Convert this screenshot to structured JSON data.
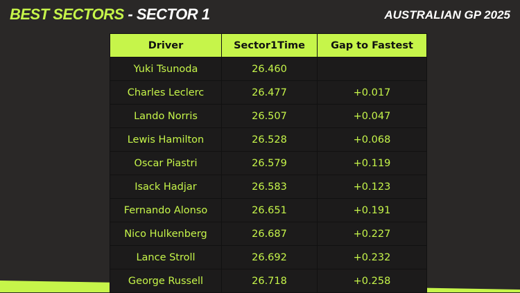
{
  "header": {
    "title_part1": "BEST SECTORS",
    "title_sep": " - ",
    "title_part2": "SECTOR 1",
    "event": "AUSTRALIAN GP 2025"
  },
  "accent_color": "#c6f54a",
  "table": {
    "columns": [
      "Driver",
      "Sector1Time",
      "Gap to Fastest"
    ],
    "rows": [
      [
        "Yuki Tsunoda",
        "26.460",
        ""
      ],
      [
        "Charles Leclerc",
        "26.477",
        "+0.017"
      ],
      [
        "Lando Norris",
        "26.507",
        "+0.047"
      ],
      [
        "Lewis Hamilton",
        "26.528",
        "+0.068"
      ],
      [
        "Oscar Piastri",
        "26.579",
        "+0.119"
      ],
      [
        "Isack Hadjar",
        "26.583",
        "+0.123"
      ],
      [
        "Fernando Alonso",
        "26.651",
        "+0.191"
      ],
      [
        "Nico Hulkenberg",
        "26.687",
        "+0.227"
      ],
      [
        "Lance Stroll",
        "26.692",
        "+0.232"
      ],
      [
        "George Russell",
        "26.718",
        "+0.258"
      ]
    ]
  }
}
